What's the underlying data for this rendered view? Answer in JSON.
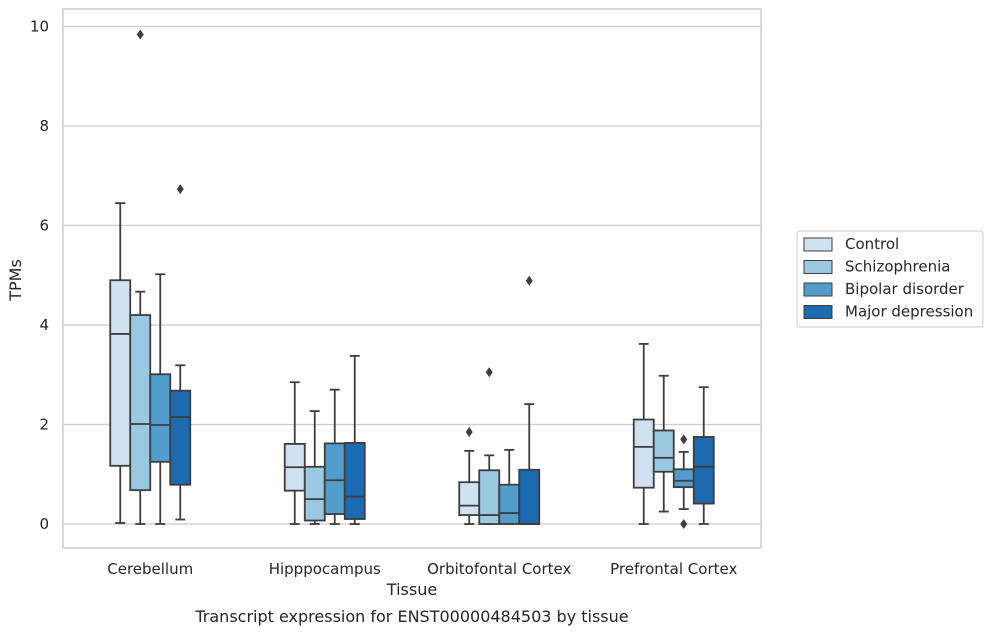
{
  "chart_data": {
    "type": "box",
    "title": "",
    "caption": "Transcript expression for ENST00000484503 by tissue",
    "xlabel": "Tissue",
    "ylabel": "TPMs",
    "ylim": [
      -0.45,
      10.35
    ],
    "yticks": [
      0,
      2,
      4,
      6,
      8,
      10
    ],
    "grid": "horizontal",
    "legend_position": "right",
    "categories": [
      "Cerebellum",
      "Hipppocampus",
      "Orbitofontal Cortex",
      "Prefrontal Cortex"
    ],
    "series": [
      {
        "name": "Control",
        "color": "#d0e1f2",
        "boxes": [
          {
            "min": 0.02,
            "q1": 1.17,
            "median": 3.82,
            "q3": 4.9,
            "max": 6.45,
            "outliers": []
          },
          {
            "min": 0.0,
            "q1": 0.67,
            "median": 1.14,
            "q3": 1.61,
            "max": 2.85,
            "outliers": []
          },
          {
            "min": 0.0,
            "q1": 0.18,
            "median": 0.37,
            "q3": 0.84,
            "max": 1.47,
            "outliers": [
              1.85
            ]
          },
          {
            "min": 0.0,
            "q1": 0.73,
            "median": 1.55,
            "q3": 2.1,
            "max": 3.62,
            "outliers": []
          }
        ]
      },
      {
        "name": "Schizophrenia",
        "color": "#9ac8e0",
        "boxes": [
          {
            "min": 0.0,
            "q1": 0.68,
            "median": 2.01,
            "q3": 4.2,
            "max": 4.67,
            "outliers": [
              9.84
            ]
          },
          {
            "min": 0.0,
            "q1": 0.07,
            "median": 0.5,
            "q3": 1.15,
            "max": 2.27,
            "outliers": []
          },
          {
            "min": 0.0,
            "q1": 0.0,
            "median": 0.18,
            "q3": 1.08,
            "max": 1.38,
            "outliers": [
              3.05
            ]
          },
          {
            "min": 0.25,
            "q1": 1.05,
            "median": 1.33,
            "q3": 1.88,
            "max": 2.98,
            "outliers": []
          }
        ]
      },
      {
        "name": "Bipolar disorder",
        "color": "#529dcc",
        "boxes": [
          {
            "min": 0.0,
            "q1": 1.25,
            "median": 1.99,
            "q3": 3.01,
            "max": 5.02,
            "outliers": []
          },
          {
            "min": 0.0,
            "q1": 0.2,
            "median": 0.88,
            "q3": 1.62,
            "max": 2.7,
            "outliers": []
          },
          {
            "min": 0.0,
            "q1": 0.0,
            "median": 0.22,
            "q3": 0.79,
            "max": 1.49,
            "outliers": []
          },
          {
            "min": 0.3,
            "q1": 0.74,
            "median": 0.87,
            "q3": 1.1,
            "max": 1.45,
            "outliers": [
              1.7,
              0.0
            ]
          }
        ]
      },
      {
        "name": "Major depression",
        "color": "#1c6aaf",
        "boxes": [
          {
            "min": 0.09,
            "q1": 0.79,
            "median": 2.15,
            "q3": 2.68,
            "max": 3.19,
            "outliers": [
              6.73
            ]
          },
          {
            "min": 0.0,
            "q1": 0.1,
            "median": 0.55,
            "q3": 1.63,
            "max": 3.38,
            "outliers": []
          },
          {
            "min": 0.0,
            "q1": 0.0,
            "median": 0.0,
            "q3": 1.09,
            "max": 2.41,
            "outliers": [
              4.89
            ]
          },
          {
            "min": 0.0,
            "q1": 0.41,
            "median": 1.15,
            "q3": 1.75,
            "max": 2.75,
            "outliers": []
          }
        ]
      }
    ]
  }
}
